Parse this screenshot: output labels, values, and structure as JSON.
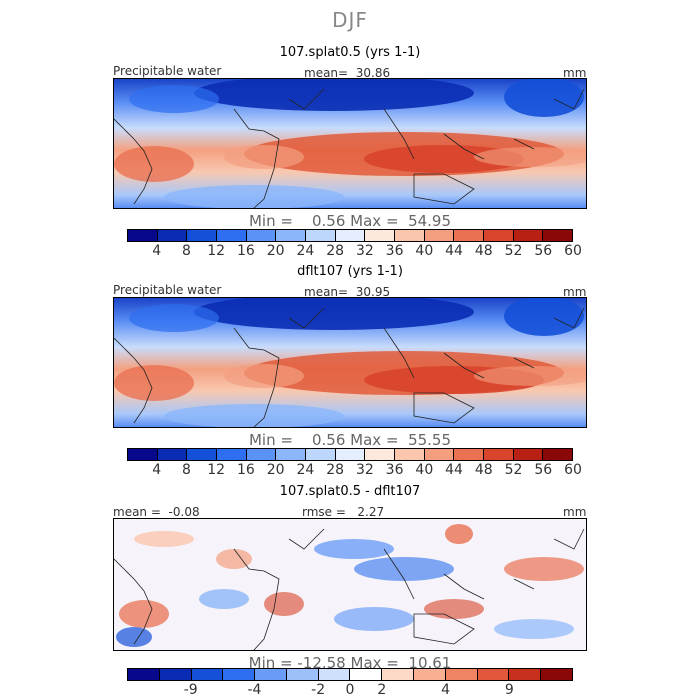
{
  "supertitle": "DJF",
  "colors": {
    "levels15": [
      "#08088c",
      "#0a2cb4",
      "#1450d8",
      "#2e6ef0",
      "#5a92f6",
      "#8cb6fa",
      "#bcd6fc",
      "#e4eefe",
      "#fde8dc",
      "#fbc6ae",
      "#f49e80",
      "#ea7252",
      "#d8442c",
      "#b82014",
      "#8a0808"
    ],
    "diff": [
      "#08088c",
      "#0a2cb4",
      "#1450d8",
      "#2e6ef0",
      "#6a9cf6",
      "#9ec0fa",
      "#cfe0fc",
      "#ffffff",
      "#fcd8c6",
      "#f8b092",
      "#f08462",
      "#e2583c",
      "#c8301e",
      "#8a0808"
    ]
  },
  "chart_data": [
    {
      "type": "heatmap",
      "title": "107.splat0.5 (yrs 1-1)",
      "variable": "Precipitable water",
      "mean_label": "mean=",
      "mean": "30.86",
      "units": "mm",
      "min_label": "Min =",
      "min": "0.56",
      "max_label": "Max =",
      "max": "54.95",
      "colorbar_ticks": [
        "4",
        "8",
        "12",
        "16",
        "20",
        "24",
        "28",
        "32",
        "36",
        "40",
        "44",
        "48",
        "52",
        "56",
        "60"
      ]
    },
    {
      "type": "heatmap",
      "title": "dflt107 (yrs 1-1)",
      "variable": "Precipitable water",
      "mean_label": "mean=",
      "mean": "30.95",
      "units": "mm",
      "min_label": "Min =",
      "min": "0.56",
      "max_label": "Max =",
      "max": "55.55",
      "colorbar_ticks": [
        "4",
        "8",
        "12",
        "16",
        "20",
        "24",
        "28",
        "32",
        "36",
        "40",
        "44",
        "48",
        "52",
        "56",
        "60"
      ]
    },
    {
      "type": "heatmap",
      "title": "107.splat0.5 - dflt107",
      "mean_label": "mean =",
      "mean": "-0.08",
      "rmse_label": "rmse =",
      "rmse": "2.27",
      "units": "mm",
      "min_label": "Min =",
      "min": "-12.58",
      "max_label": "Max =",
      "max": "10.61",
      "colorbar_ticks": [
        "-9",
        "-4",
        "-2",
        "0",
        "2",
        "4",
        "9"
      ]
    }
  ]
}
